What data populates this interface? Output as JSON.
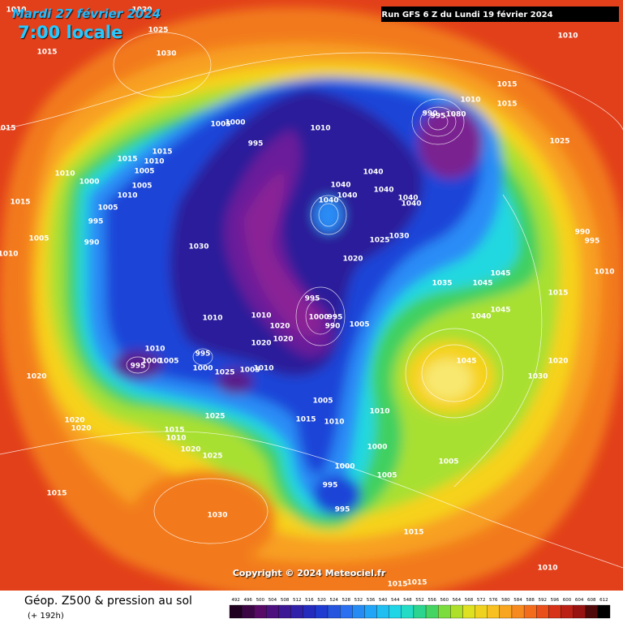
{
  "header": {
    "date": "Mardi 27 février 2024",
    "time": "7:00 locale",
    "run": "Run GFS 6 Z du Lundi 19 février 2024"
  },
  "copyright": "Copyright © 2024 Meteociel.fr",
  "legend": {
    "title": "Géop. Z500 & pression au sol",
    "lead": "(+ 192h)",
    "scale": [
      492,
      496,
      500,
      504,
      508,
      512,
      516,
      520,
      524,
      528,
      532,
      536,
      540,
      544,
      548,
      552,
      556,
      560,
      564,
      568,
      572,
      576,
      580,
      584,
      588,
      592,
      596,
      600,
      604,
      608,
      612
    ]
  },
  "pressure_labels": [
    "1010",
    "1020",
    "1025",
    "1015",
    "1030",
    "1010",
    "1015",
    "1015",
    "1010",
    "1005",
    "1000",
    "1010",
    "995",
    "1015",
    "1015",
    "1015",
    "1010",
    "1005",
    "1010",
    "1000",
    "1005",
    "1010",
    "1015",
    "1005",
    "995",
    "990",
    "1005",
    "1010",
    "1040",
    "1040",
    "1040",
    "1040",
    "1040",
    "1040",
    "1040",
    "1030",
    "1025",
    "1030",
    "1020",
    "1025",
    "990",
    "995",
    "1010",
    "1035",
    "1045",
    "1045",
    "1015",
    "995",
    "1000",
    "995",
    "990",
    "1005",
    "1040",
    "1045",
    "1010",
    "1010",
    "1020",
    "1020",
    "1020",
    "1010",
    "995",
    "1000",
    "1005",
    "995",
    "1000",
    "1025",
    "1005",
    "1010",
    "1045",
    "1020",
    "1030",
    "1020",
    "1005",
    "1015",
    "1010",
    "1010",
    "1025",
    "1020",
    "1020",
    "1015",
    "1010",
    "1020",
    "1025",
    "1000",
    "1005",
    "1000",
    "1005",
    "995",
    "995",
    "1015",
    "1030",
    "1015",
    "1010",
    "1015",
    "1015",
    "990",
    "995",
    "1080"
  ]
}
